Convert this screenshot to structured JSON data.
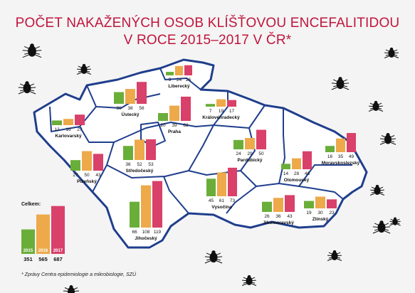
{
  "title_line1": "POČET NAKAŽENÝCH OSOB KLÍŠŤOVOU ENCEFALITIDOU",
  "title_line2": "V ROCE 2015–2017 V ČR*",
  "footnote": "* Zprávy Centra epidemiologie a mikrobiologie, SZÚ",
  "colors": {
    "2015": "#6aae3a",
    "2016": "#eda94a",
    "2017": "#d9406a",
    "title": "#c0143c",
    "map_border": "#1f3e8c"
  },
  "chart_data": {
    "type": "bar",
    "title": "POČET NAKAŽENÝCH OSOB KLÍŠŤOVOU ENCEFALITIDOU V ROCE 2015–2017 V ČR*",
    "series": [
      {
        "name": "2015"
      },
      {
        "name": "2016"
      },
      {
        "name": "2017"
      }
    ],
    "regions": [
      {
        "name": "Liberecký",
        "values": [
          9,
          24,
          26
        ]
      },
      {
        "name": "Ústecký",
        "values": [
          30,
          38,
          56
        ]
      },
      {
        "name": "Karlovarský",
        "values": [
          12,
          16,
          27
        ]
      },
      {
        "name": "Praha",
        "values": [
          20,
          39,
          62
        ]
      },
      {
        "name": "Královéhradecký",
        "values": [
          7,
          19,
          17
        ]
      },
      {
        "name": "Středočeský",
        "values": [
          36,
          52,
          53
        ]
      },
      {
        "name": "Plzeňský",
        "values": [
          27,
          50,
          43
        ]
      },
      {
        "name": "Pardubický",
        "values": [
          24,
          29,
          50
        ]
      },
      {
        "name": "Olomoucký",
        "values": [
          14,
          28,
          46
        ]
      },
      {
        "name": "Moravskoslezský",
        "values": [
          16,
          35,
          49
        ]
      },
      {
        "name": "Vysočina",
        "values": [
          45,
          61,
          73
        ]
      },
      {
        "name": "Jihomoravský",
        "values": [
          26,
          36,
          43
        ]
      },
      {
        "name": "Zlínský",
        "values": [
          19,
          30,
          23
        ]
      },
      {
        "name": "Jihočeský",
        "values": [
          66,
          108,
          119
        ]
      }
    ],
    "total": {
      "label": "Celkem:",
      "values": [
        351,
        565,
        687
      ]
    }
  }
}
